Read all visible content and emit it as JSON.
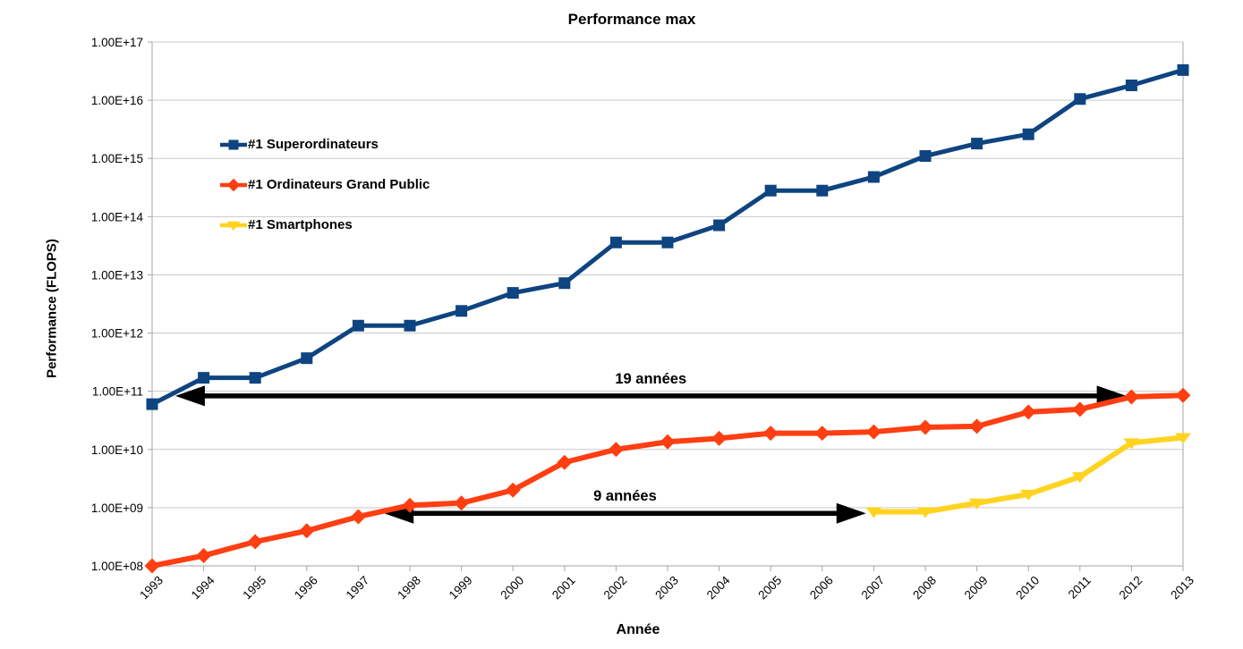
{
  "chart_data": {
    "type": "line",
    "title": "Performance max",
    "xlabel": "Année",
    "ylabel": "Performance (FLOPS)",
    "x_ticks": [
      1993,
      1994,
      1995,
      1996,
      1997,
      1998,
      1999,
      2000,
      2001,
      2002,
      2003,
      2004,
      2005,
      2006,
      2007,
      2008,
      2009,
      2010,
      2011,
      2012,
      2013
    ],
    "y_tick_labels": [
      "1.00E+17",
      "1.00E+16",
      "1.00E+15",
      "1.00E+14",
      "1.00E+13",
      "1.00E+12",
      "1.00E+11",
      "1.00E+10",
      "1.00E+09",
      "1.00E+08"
    ],
    "y_axis": {
      "scale": "log",
      "min": 100000000.0,
      "max": 1e+17
    },
    "x_axis": {
      "min": 1993,
      "max": 2013
    },
    "grid": "horizontal",
    "legend_position": "upper-left-inside",
    "series": [
      {
        "name": "#1 Superordinateurs",
        "marker": "square",
        "color": "#0E4480",
        "line_width": 5,
        "x": [
          1993,
          1994,
          1995,
          1996,
          1997,
          1998,
          1999,
          2000,
          2001,
          2002,
          2003,
          2004,
          2005,
          2006,
          2007,
          2008,
          2009,
          2010,
          2011,
          2012,
          2013
        ],
        "values": [
          60000000000.0,
          170000000000.0,
          170000000000.0,
          370000000000.0,
          1340000000000.0,
          1340000000000.0,
          2400000000000.0,
          4900000000000.0,
          7200000000000.0,
          36000000000000.0,
          36000000000000.0,
          71000000000000.0,
          280000000000000.0,
          280000000000000.0,
          480000000000000.0,
          1100000000000000.0,
          1800000000000000.0,
          2600000000000000.0,
          1.05e+16,
          1.8e+16,
          3.3e+16
        ]
      },
      {
        "name": "#1 Ordinateurs Grand Public",
        "marker": "diamond",
        "color": "#FF3E12",
        "line_width": 6,
        "x": [
          1993,
          1994,
          1995,
          1996,
          1997,
          1998,
          1999,
          2000,
          2001,
          2002,
          2003,
          2004,
          2005,
          2006,
          2007,
          2008,
          2009,
          2010,
          2011,
          2012,
          2013
        ],
        "values": [
          100000000.0,
          150000000.0,
          260000000.0,
          400000000.0,
          700000000.0,
          1100000000.0,
          1200000000.0,
          2000000000.0,
          6000000000.0,
          10000000000.0,
          13500000000.0,
          15500000000.0,
          19000000000.0,
          19000000000.0,
          20000000000.0,
          24000000000.0,
          25000000000.0,
          44000000000.0,
          49000000000.0,
          80000000000.0,
          85000000000.0
        ]
      },
      {
        "name": "#1 Smartphones",
        "marker": "triangle-down",
        "color": "#FFD320",
        "line_width": 6,
        "x": [
          2007,
          2008,
          2009,
          2010,
          2011,
          2012,
          2013
        ],
        "values": [
          850000000.0,
          850000000.0,
          1200000000.0,
          1700000000.0,
          3400000000.0,
          13000000000.0,
          16000000000.0
        ]
      }
    ],
    "annotations": [
      {
        "label": "19 années",
        "from_year": 1993.45,
        "to_year": 2011.9,
        "value": 83000000000.0
      },
      {
        "label": "9 années",
        "from_year": 1997.5,
        "to_year": 2006.85,
        "value": 800000000.0
      }
    ],
    "colors": {
      "background": "#FFFFFF",
      "gridline": "#C9C9C9",
      "axis": "#A6A6A6",
      "annotation": "#000000",
      "text": "#000000"
    }
  }
}
